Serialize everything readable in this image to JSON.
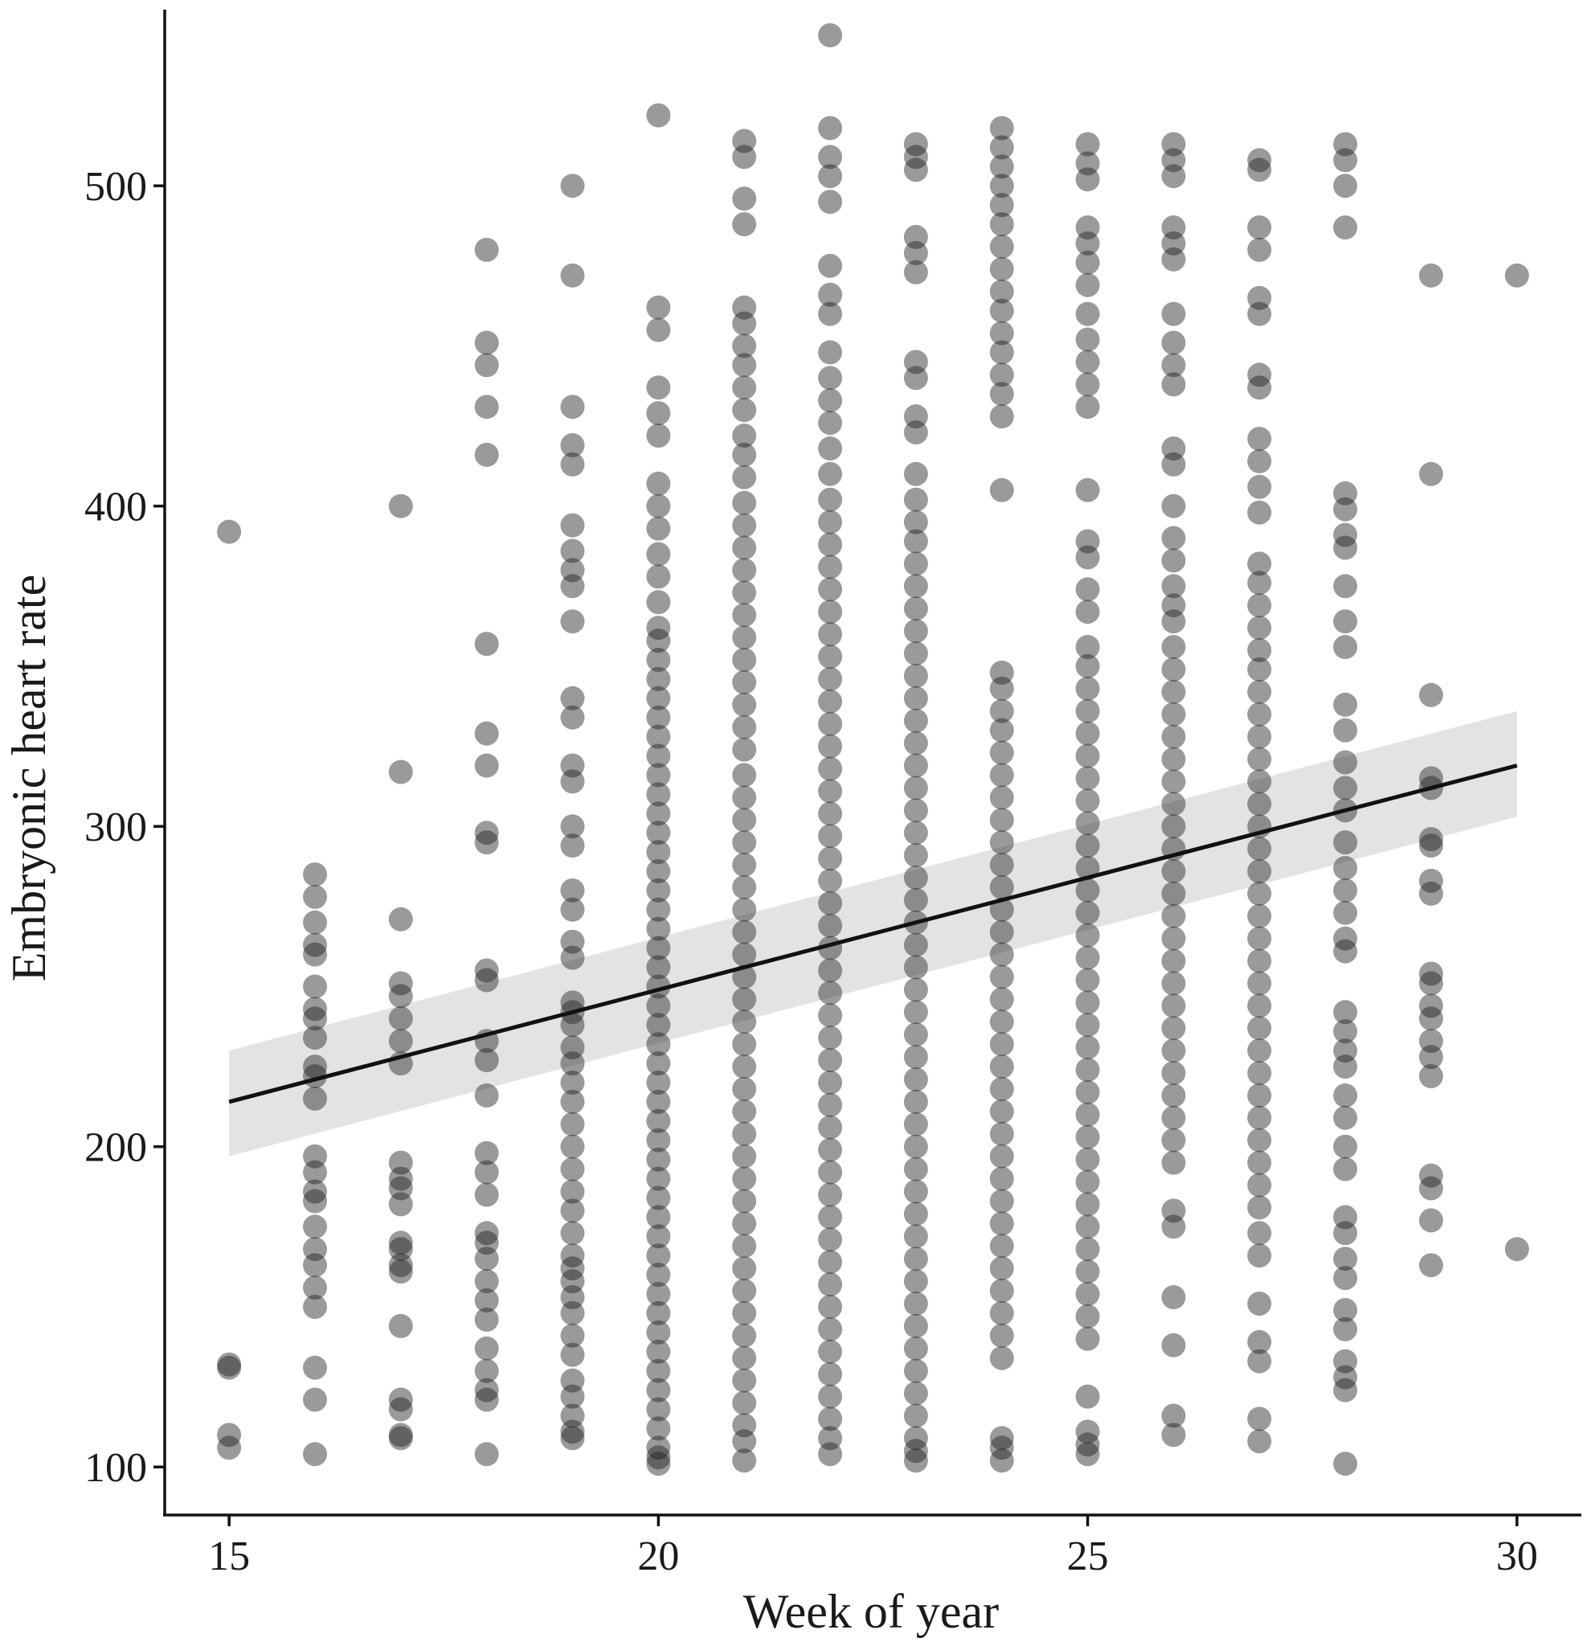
{
  "chart_data": {
    "type": "scatter",
    "title": "",
    "xlabel": "Week of year",
    "ylabel": "Embryonic heart rate",
    "xlim": [
      14.25,
      30.75
    ],
    "ylim": [
      85,
      555
    ],
    "xticks": [
      15,
      20,
      25,
      30
    ],
    "yticks": [
      100,
      200,
      300,
      400,
      500
    ],
    "grid": false,
    "legend": "none",
    "point_color": "#1e1e1e",
    "point_opacity": 0.45,
    "ribbon_color": "#d9d9d9",
    "line_color": "#111111",
    "trend": {
      "x": [
        15,
        30
      ],
      "y": [
        214,
        319
      ],
      "ci_lower": [
        197,
        303
      ],
      "ci_upper": [
        230,
        336
      ]
    },
    "points": [
      {
        "x": 15,
        "y": [
          392,
          132,
          131,
          110,
          106
        ]
      },
      {
        "x": 16,
        "y": [
          285,
          278,
          270,
          263,
          260,
          250,
          243,
          240,
          234,
          225,
          222,
          215,
          197,
          192,
          186,
          183,
          175,
          168,
          163,
          156,
          150,
          131,
          121,
          104
        ]
      },
      {
        "x": 17,
        "y": [
          400,
          317,
          271,
          251,
          247,
          240,
          233,
          226,
          195,
          190,
          187,
          182,
          170,
          168,
          163,
          161,
          144,
          121,
          118,
          110,
          109
        ]
      },
      {
        "x": 18,
        "y": [
          480,
          451,
          444,
          431,
          416,
          357,
          329,
          319,
          298,
          295,
          255,
          252,
          233,
          227,
          216,
          198,
          192,
          185,
          173,
          170,
          165,
          158,
          152,
          146,
          137,
          130,
          124,
          121,
          104
        ]
      },
      {
        "x": 19,
        "y": [
          500,
          472,
          431,
          419,
          413,
          394,
          386,
          380,
          375,
          364,
          340,
          334,
          319,
          314,
          300,
          294,
          280,
          274,
          264,
          259,
          245,
          242,
          238,
          231,
          226,
          220,
          214,
          207,
          200,
          193,
          186,
          180,
          173,
          166,
          162,
          158,
          153,
          148,
          141,
          135,
          127,
          122,
          116,
          111,
          109
        ]
      },
      {
        "x": 20,
        "y": [
          522,
          462,
          455,
          437,
          429,
          422,
          407,
          400,
          393,
          385,
          378,
          370,
          362,
          358,
          352,
          346,
          340,
          334,
          328,
          322,
          316,
          310,
          304,
          298,
          292,
          286,
          280,
          274,
          268,
          262,
          256,
          250,
          244,
          238,
          232,
          226,
          220,
          214,
          208,
          202,
          196,
          190,
          184,
          178,
          172,
          166,
          160,
          154,
          148,
          142,
          136,
          130,
          124,
          118,
          112,
          106,
          103,
          101
        ]
      },
      {
        "x": 21,
        "y": [
          514,
          509,
          496,
          488,
          462,
          457,
          450,
          444,
          437,
          430,
          422,
          416,
          409,
          401,
          394,
          387,
          380,
          373,
          366,
          359,
          352,
          345,
          338,
          331,
          324,
          316,
          309,
          302,
          295,
          288,
          281,
          274,
          267,
          260,
          253,
          246,
          239,
          232,
          225,
          218,
          211,
          204,
          197,
          190,
          183,
          176,
          169,
          162,
          155,
          148,
          141,
          134,
          127,
          120,
          113,
          108,
          102
        ]
      },
      {
        "x": 22,
        "y": [
          547,
          518,
          509,
          503,
          495,
          475,
          466,
          460,
          448,
          440,
          433,
          426,
          418,
          410,
          402,
          395,
          388,
          381,
          374,
          367,
          360,
          353,
          346,
          339,
          332,
          325,
          318,
          311,
          304,
          297,
          290,
          283,
          276,
          269,
          262,
          255,
          248,
          241,
          234,
          227,
          220,
          213,
          206,
          199,
          192,
          185,
          178,
          171,
          164,
          157,
          150,
          143,
          136,
          129,
          122,
          115,
          109,
          104
        ]
      },
      {
        "x": 23,
        "y": [
          513,
          509,
          505,
          484,
          479,
          473,
          445,
          440,
          428,
          423,
          410,
          402,
          395,
          389,
          382,
          375,
          368,
          361,
          354,
          347,
          340,
          333,
          326,
          319,
          312,
          305,
          298,
          291,
          284,
          277,
          270,
          263,
          256,
          249,
          242,
          235,
          228,
          221,
          214,
          207,
          200,
          193,
          186,
          179,
          172,
          165,
          158,
          151,
          144,
          137,
          130,
          123,
          116,
          109,
          105,
          102
        ]
      },
      {
        "x": 24,
        "y": [
          518,
          512,
          506,
          500,
          494,
          488,
          481,
          474,
          467,
          461,
          454,
          448,
          441,
          435,
          428,
          405,
          348,
          343,
          336,
          330,
          323,
          316,
          309,
          302,
          295,
          288,
          281,
          274,
          267,
          260,
          253,
          246,
          239,
          232,
          225,
          218,
          211,
          204,
          197,
          190,
          183,
          176,
          169,
          162,
          155,
          148,
          141,
          134,
          109,
          106,
          102
        ]
      },
      {
        "x": 25,
        "y": [
          513,
          507,
          502,
          487,
          482,
          476,
          469,
          460,
          452,
          445,
          438,
          431,
          405,
          389,
          384,
          374,
          367,
          356,
          350,
          343,
          336,
          329,
          322,
          315,
          308,
          301,
          294,
          287,
          280,
          273,
          266,
          259,
          252,
          245,
          238,
          231,
          224,
          217,
          210,
          203,
          196,
          189,
          182,
          175,
          168,
          161,
          154,
          147,
          140,
          122,
          111,
          107,
          104
        ]
      },
      {
        "x": 26,
        "y": [
          513,
          508,
          503,
          487,
          482,
          477,
          460,
          451,
          444,
          438,
          418,
          413,
          400,
          390,
          383,
          375,
          369,
          364,
          356,
          349,
          342,
          335,
          328,
          321,
          314,
          307,
          300,
          293,
          286,
          279,
          272,
          265,
          258,
          251,
          244,
          237,
          230,
          223,
          216,
          209,
          202,
          195,
          180,
          175,
          153,
          138,
          116,
          110
        ]
      },
      {
        "x": 27,
        "y": [
          508,
          505,
          487,
          480,
          465,
          460,
          441,
          437,
          421,
          414,
          406,
          398,
          382,
          376,
          369,
          362,
          355,
          349,
          342,
          335,
          328,
          321,
          314,
          307,
          300,
          293,
          286,
          279,
          272,
          265,
          258,
          251,
          244,
          237,
          230,
          223,
          216,
          209,
          202,
          195,
          188,
          181,
          173,
          166,
          151,
          139,
          133,
          115,
          108
        ]
      },
      {
        "x": 28,
        "y": [
          513,
          508,
          500,
          487,
          404,
          399,
          391,
          387,
          375,
          364,
          356,
          338,
          330,
          320,
          312,
          305,
          295,
          287,
          280,
          273,
          265,
          261,
          242,
          236,
          230,
          225,
          216,
          209,
          200,
          193,
          178,
          173,
          165,
          159,
          149,
          143,
          133,
          128,
          124,
          101
        ]
      },
      {
        "x": 29,
        "y": [
          472,
          410,
          341,
          315,
          312,
          296,
          294,
          283,
          279,
          254,
          251,
          244,
          240,
          233,
          228,
          222,
          191,
          187,
          177,
          163
        ]
      },
      {
        "x": 30,
        "y": [
          472,
          168
        ]
      }
    ]
  }
}
